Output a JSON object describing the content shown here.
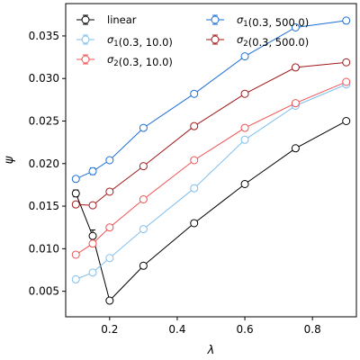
{
  "chart_data": {
    "type": "line",
    "xlabel": "λ",
    "ylabel": "ψ",
    "xlim": [
      0.07,
      0.93
    ],
    "ylim": [
      0.002,
      0.0388
    ],
    "xticks": [
      {
        "v": 0.2,
        "label": "0.2"
      },
      {
        "v": 0.4,
        "label": "0.4"
      },
      {
        "v": 0.6,
        "label": "0.6"
      },
      {
        "v": 0.8,
        "label": "0.8"
      }
    ],
    "yticks": [
      {
        "v": 0.005,
        "label": "0.005"
      },
      {
        "v": 0.01,
        "label": "0.010"
      },
      {
        "v": 0.015,
        "label": "0.015"
      },
      {
        "v": 0.02,
        "label": "0.020"
      },
      {
        "v": 0.025,
        "label": "0.025"
      },
      {
        "v": 0.03,
        "label": "0.030"
      },
      {
        "v": 0.035,
        "label": "0.035"
      }
    ],
    "grid": false,
    "legend_position": "top-left",
    "series": [
      {
        "name": "linear",
        "name_parts": [
          {
            "t": "linear"
          }
        ],
        "color": "#000000",
        "x": [
          0.1,
          0.15,
          0.2,
          0.3,
          0.45,
          0.6,
          0.75,
          0.9
        ],
        "y": [
          0.0165,
          0.0115,
          0.0039,
          0.008,
          0.013,
          0.0176,
          0.0218,
          0.025
        ],
        "err": [
          0.0004,
          0.0007,
          0.0002,
          0.0002,
          0.0002,
          0.0002,
          0.0002,
          0.0002
        ]
      },
      {
        "name": "σ1(0.3, 10.0)",
        "name_parts": [
          {
            "t": "σ",
            "i": true
          },
          {
            "t": "1",
            "sub": true
          },
          {
            "t": "(0.3, 10.0)"
          }
        ],
        "color": "#7fbfef",
        "x": [
          0.1,
          0.15,
          0.2,
          0.3,
          0.45,
          0.6,
          0.75,
          0.9
        ],
        "y": [
          0.0064,
          0.0072,
          0.0089,
          0.0123,
          0.0171,
          0.0228,
          0.0268,
          0.0293
        ],
        "err": [
          0.0001,
          0.0001,
          0.0001,
          0.0001,
          0.0001,
          0.0001,
          0.0001,
          0.0001
        ]
      },
      {
        "name": "σ2(0.3, 10.0)",
        "name_parts": [
          {
            "t": "σ",
            "i": true
          },
          {
            "t": "2",
            "sub": true
          },
          {
            "t": "(0.3, 10.0)"
          }
        ],
        "color": "#f05050",
        "x": [
          0.1,
          0.15,
          0.2,
          0.3,
          0.45,
          0.6,
          0.75,
          0.9
        ],
        "y": [
          0.0093,
          0.0106,
          0.0125,
          0.0158,
          0.0204,
          0.0242,
          0.0271,
          0.0296
        ],
        "err": [
          0.0001,
          0.0001,
          0.0001,
          0.0001,
          0.0001,
          0.0001,
          0.0001,
          0.0001
        ]
      },
      {
        "name": "σ1(0.3, 500.0)",
        "name_parts": [
          {
            "t": "σ",
            "i": true
          },
          {
            "t": "1",
            "sub": true
          },
          {
            "t": "(0.3, 500.0)"
          }
        ],
        "color": "#1a6fd6",
        "x": [
          0.1,
          0.15,
          0.2,
          0.3,
          0.45,
          0.6,
          0.75,
          0.9
        ],
        "y": [
          0.0182,
          0.0191,
          0.0204,
          0.0242,
          0.0282,
          0.0326,
          0.036,
          0.0368
        ],
        "err": [
          0.0002,
          0.0004,
          0.0002,
          0.0002,
          0.0002,
          0.0002,
          0.0002,
          0.0002
        ]
      },
      {
        "name": "σ2(0.3, 500.0)",
        "name_parts": [
          {
            "t": "σ",
            "i": true
          },
          {
            "t": "2",
            "sub": true
          },
          {
            "t": "(0.3, 500.0)"
          }
        ],
        "color": "#a01818",
        "x": [
          0.1,
          0.15,
          0.2,
          0.3,
          0.45,
          0.6,
          0.75,
          0.9
        ],
        "y": [
          0.0152,
          0.0151,
          0.0167,
          0.0197,
          0.0244,
          0.0282,
          0.0313,
          0.0319
        ],
        "err": [
          0.0001,
          0.0001,
          0.0001,
          0.0001,
          0.0001,
          0.0001,
          0.0001,
          0.0001
        ]
      }
    ]
  }
}
